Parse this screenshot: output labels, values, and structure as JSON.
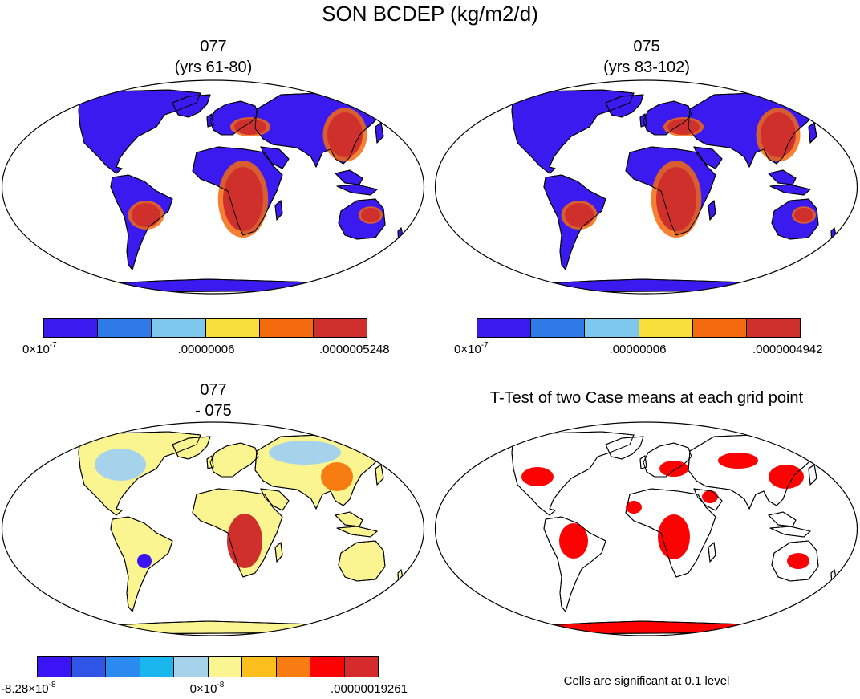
{
  "figure_title": "SON BCDEP (kg/m2/d)",
  "panels": [
    {
      "id": "p1",
      "title_line1": "077",
      "title_line2": "(yrs 61-80)"
    },
    {
      "id": "p2",
      "title_line1": "075",
      "title_line2": "(yrs 83-102)"
    },
    {
      "id": "p3",
      "title_line1": "077",
      "title_line2": "- 075"
    },
    {
      "id": "p4",
      "title_line1": "T-Test of two Case means at each grid point",
      "title_line2": ""
    }
  ],
  "colorbars": [
    {
      "colors": [
        "#3b1af0",
        "#2e7be8",
        "#7ec8ee",
        "#f9df3c",
        "#f46a0e",
        "#d0302b"
      ],
      "label_left_base": "0×10",
      "label_left_exp": "-7",
      "label_mid": ".00000006",
      "label_right": ".0000005248"
    },
    {
      "colors": [
        "#3b1af0",
        "#2e7be8",
        "#7ec8ee",
        "#f9df3c",
        "#f46a0e",
        "#d0302b"
      ],
      "label_left_base": "0×10",
      "label_left_exp": "-7",
      "label_mid": ".00000006",
      "label_right": ".0000004942"
    },
    {
      "colors": [
        "#3b14f5",
        "#2f55e6",
        "#2b8aef",
        "#19b7ee",
        "#a6d2ec",
        "#fbf591",
        "#fcbf1c",
        "#f77c11",
        "#fb0303",
        "#d52b2c"
      ],
      "label_left_base": "-8.28×10",
      "label_left_exp": "-8",
      "label_mid_base": "0×10",
      "label_mid_exp": "-8",
      "label_right": ".00000019261"
    }
  ],
  "significance_note": "Cells are significant at 0.1 level",
  "map_colors": {
    "ocean": "#ffffff",
    "deposition_low": "#3b1af0",
    "deposition_high": "#d0302b",
    "difference_zero": "#fbf591",
    "significant": "#fb0303"
  }
}
